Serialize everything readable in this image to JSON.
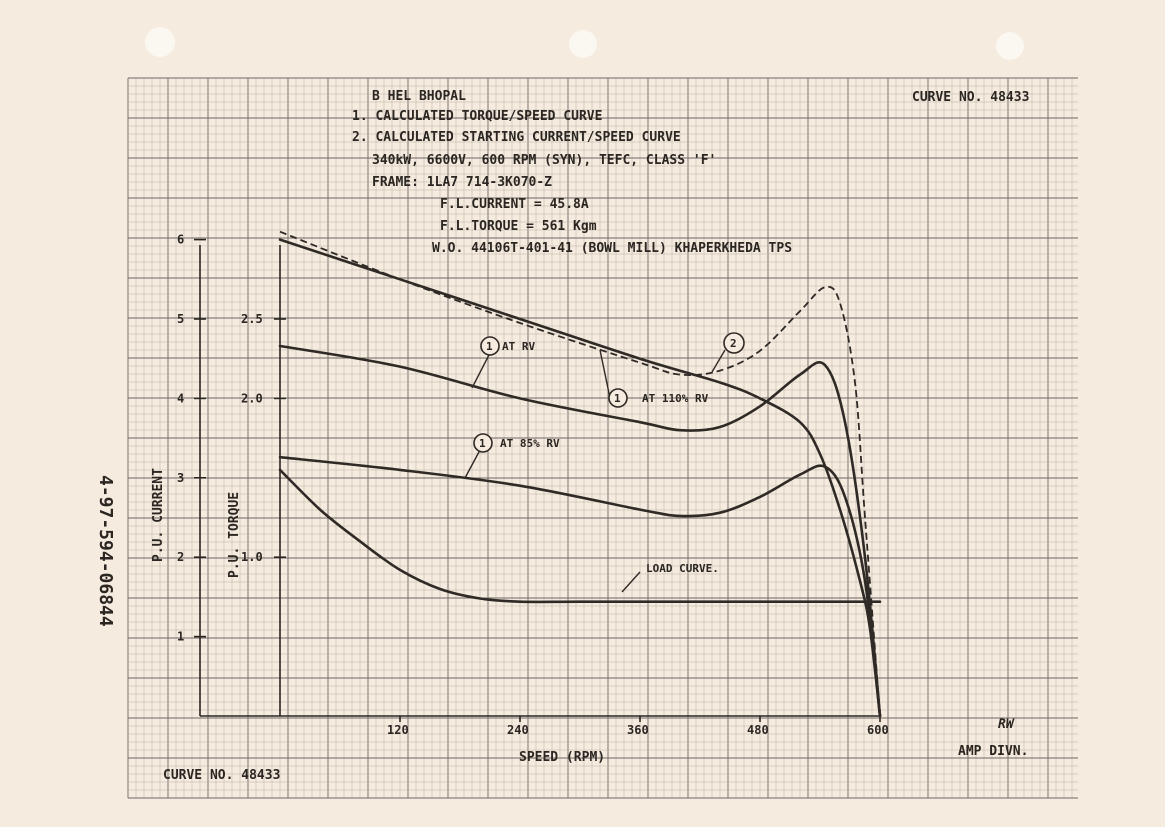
{
  "header": {
    "line1": "B HEL BHOPAL",
    "line2": "1. CALCULATED TORQUE/SPEED CURVE",
    "line3": "2. CALCULATED STARTING CURRENT/SPEED CURVE",
    "line4": "340kW, 6600V, 600 RPM (SYN), TEFC, CLASS 'F'",
    "line5": "FRAME: 1LA7 714-3K070-Z",
    "line6": "F.L.CURRENT = 45.8A",
    "line7": "F.L.TORQUE = 561 Kgm",
    "line8": "W.O. 44106T-401-41 (BOWL MILL) KHAPERKHEDA TPS",
    "curve_no_top": "CURVE NO. 48433",
    "curve_no_bottom": "CURVE NO. 48433",
    "side_number": "4-97-594-06844",
    "amp_divn": "AMP DIVN.",
    "initials": "RW"
  },
  "annotations": {
    "c1": "1",
    "c1_text": "AT RV",
    "c2": "1",
    "c2_text": "AT 110% RV",
    "c3": "1",
    "c3_text": "AT 85% RV",
    "c4": "2",
    "load": "LOAD CURVE."
  },
  "chart_data": {
    "type": "line",
    "xlabel": "SPEED (RPM)",
    "ylabel_left": "P.U. CURRENT",
    "ylabel_right": "P.U. TORQUE",
    "xlim": [
      0,
      600
    ],
    "x_ticks": [
      120,
      240,
      360,
      480,
      600
    ],
    "current_ticks": [
      1,
      2,
      3,
      4,
      5,
      6
    ],
    "torque_ticks": [
      "1.0",
      "2.0",
      "2.5"
    ],
    "torque_per_current_unit": 0.5,
    "grid": true,
    "series": [
      {
        "name": "2",
        "axis": "current",
        "x": [
          0,
          120,
          240,
          360,
          400,
          440,
          480,
          520,
          545,
          560,
          575,
          585,
          600
        ],
        "y": [
          6.1,
          5.5,
          4.95,
          4.45,
          4.3,
          4.35,
          4.6,
          5.1,
          5.4,
          5.2,
          4.2,
          2.5,
          0.0
        ]
      },
      {
        "name": "AT 110% RV",
        "axis": "current",
        "x": [
          0,
          120,
          240,
          360,
          440,
          480,
          520,
          540,
          560,
          580,
          590,
          600
        ],
        "y": [
          6.0,
          5.5,
          5.0,
          4.5,
          4.2,
          4.0,
          3.7,
          3.3,
          2.6,
          1.7,
          1.1,
          0.0
        ]
      },
      {
        "name": "AT RV",
        "axis": "torque",
        "x": [
          0,
          120,
          240,
          360,
          400,
          440,
          480,
          520,
          545,
          565,
          585,
          600
        ],
        "y": [
          2.33,
          2.2,
          2.0,
          1.85,
          1.8,
          1.82,
          1.95,
          2.15,
          2.21,
          1.85,
          1.0,
          0.0
        ]
      },
      {
        "name": "AT 85% RV",
        "axis": "torque",
        "x": [
          0,
          120,
          240,
          360,
          400,
          440,
          480,
          520,
          545,
          565,
          585,
          600
        ],
        "y": [
          1.63,
          1.55,
          1.45,
          1.3,
          1.26,
          1.28,
          1.38,
          1.52,
          1.57,
          1.38,
          0.85,
          0.0
        ]
      },
      {
        "name": "LOAD CURVE.",
        "axis": "torque",
        "x": [
          0,
          40,
          80,
          120,
          160,
          200,
          240,
          300,
          400,
          500,
          600
        ],
        "y": [
          1.55,
          1.3,
          1.1,
          0.92,
          0.8,
          0.74,
          0.72,
          0.72,
          0.72,
          0.72,
          0.72
        ]
      }
    ]
  }
}
